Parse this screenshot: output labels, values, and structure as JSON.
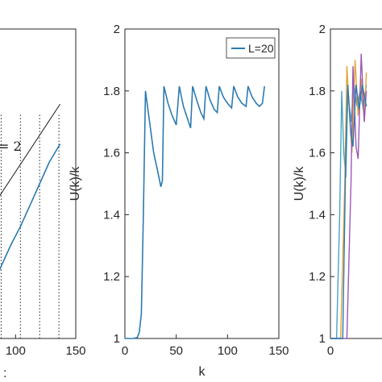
{
  "colors": {
    "blue": "#2b7bb0",
    "line_black": "#222222",
    "orange": "#e5a33a",
    "purple": "#9b59b6",
    "teal": "#4aa3c4",
    "axis": "#262626"
  },
  "chart_data": [
    {
      "panel": "left",
      "type": "line",
      "xlabel": "",
      "ylabel": "",
      "xlim": [
        0,
        150
      ],
      "x_ticks": [
        "100",
        "150"
      ],
      "annotation": "= 2",
      "dotted_vertical_lines_x": [
        88,
        104,
        120,
        136
      ],
      "series": [
        {
          "kind": "reference-line",
          "points": [
            [
              80,
              6.2
            ],
            [
              137,
              9.6
            ]
          ]
        },
        {
          "kind": "staircase-curve",
          "points": [
            [
              80,
              3.6
            ],
            [
              88,
              4.3
            ],
            [
              96,
              5.0
            ],
            [
              104,
              5.6
            ],
            [
              112,
              6.3
            ],
            [
              120,
              7.0
            ],
            [
              128,
              7.7
            ],
            [
              137,
              8.3
            ]
          ]
        }
      ]
    },
    {
      "panel": "middle",
      "type": "line",
      "xlabel": "k",
      "ylabel": "U(k)/k",
      "xlim": [
        0,
        150
      ],
      "ylim": [
        1,
        2
      ],
      "x_ticks": [
        "0",
        "50",
        "100",
        "150"
      ],
      "y_ticks": [
        "1",
        "1.2",
        "1.4",
        "1.6",
        "1.8",
        "2"
      ],
      "legend": {
        "position": "top-right",
        "entries": [
          "L=20"
        ]
      },
      "series": [
        {
          "name": "L=20",
          "points": [
            [
              0,
              1
            ],
            [
              8,
              1
            ],
            [
              12,
              1.003
            ],
            [
              14,
              1.02
            ],
            [
              16,
              1.08
            ],
            [
              18,
              1.4
            ],
            [
              20,
              1.8
            ],
            [
              24,
              1.7
            ],
            [
              28,
              1.6
            ],
            [
              32,
              1.54
            ],
            [
              35,
              1.49
            ],
            [
              36.5,
              1.51
            ],
            [
              38,
              1.815
            ],
            [
              42,
              1.76
            ],
            [
              46,
              1.72
            ],
            [
              50,
              1.69
            ],
            [
              53,
              1.815
            ],
            [
              57,
              1.75
            ],
            [
              61,
              1.71
            ],
            [
              64,
              1.68
            ],
            [
              66,
              1.815
            ],
            [
              70,
              1.77
            ],
            [
              74,
              1.73
            ],
            [
              77,
              1.71
            ],
            [
              79,
              1.815
            ],
            [
              83,
              1.77
            ],
            [
              87,
              1.74
            ],
            [
              90,
              1.73
            ],
            [
              92,
              1.815
            ],
            [
              96,
              1.78
            ],
            [
              100,
              1.76
            ],
            [
              104,
              1.745
            ],
            [
              106,
              1.815
            ],
            [
              110,
              1.78
            ],
            [
              114,
              1.76
            ],
            [
              118,
              1.75
            ],
            [
              120,
              1.815
            ],
            [
              124,
              1.78
            ],
            [
              128,
              1.76
            ],
            [
              131,
              1.75
            ],
            [
              134,
              1.76
            ],
            [
              136,
              1.815
            ]
          ]
        }
      ]
    },
    {
      "panel": "right",
      "type": "line",
      "xlabel": "",
      "ylabel": "U(k)/k",
      "ylim": [
        1,
        2
      ],
      "x_ticks": [
        "0"
      ],
      "y_ticks": [
        "1",
        "1.2",
        "1.4",
        "1.6",
        "1.8",
        "2"
      ],
      "series": [
        {
          "color_key": "teal",
          "points": [
            [
              0,
              1
            ],
            [
              6,
              1
            ],
            [
              9,
              1.4
            ],
            [
              11,
              1.8
            ],
            [
              13,
              1.6
            ],
            [
              15,
              1.52
            ],
            [
              17,
              1.8
            ],
            [
              20,
              1.7
            ],
            [
              23,
              1.82
            ],
            [
              26,
              1.75
            ],
            [
              29,
              1.8
            ],
            [
              32,
              1.74
            ],
            [
              35,
              1.82
            ]
          ]
        },
        {
          "color_key": "orange",
          "points": [
            [
              0,
              1
            ],
            [
              10,
              1
            ],
            [
              14,
              1.5
            ],
            [
              16,
              1.88
            ],
            [
              19,
              1.7
            ],
            [
              21,
              1.6
            ],
            [
              24,
              1.9
            ],
            [
              27,
              1.72
            ],
            [
              30,
              1.84
            ],
            [
              33,
              1.7
            ],
            [
              35,
              1.86
            ]
          ]
        },
        {
          "color_key": "purple",
          "points": [
            [
              0,
              1
            ],
            [
              16,
              1
            ],
            [
              20,
              1.5
            ],
            [
              22,
              1.88
            ],
            [
              25,
              1.62
            ],
            [
              27,
              1.58
            ],
            [
              30,
              1.92
            ],
            [
              33,
              1.7
            ],
            [
              35,
              1.8
            ]
          ]
        },
        {
          "color_key": "blue",
          "points": [
            [
              0,
              1
            ],
            [
              12,
              1
            ],
            [
              15,
              1.6
            ],
            [
              17,
              1.82
            ],
            [
              20,
              1.66
            ],
            [
              22,
              1.62
            ],
            [
              25,
              1.82
            ],
            [
              28,
              1.74
            ],
            [
              31,
              1.82
            ],
            [
              35,
              1.75
            ]
          ]
        }
      ]
    }
  ]
}
